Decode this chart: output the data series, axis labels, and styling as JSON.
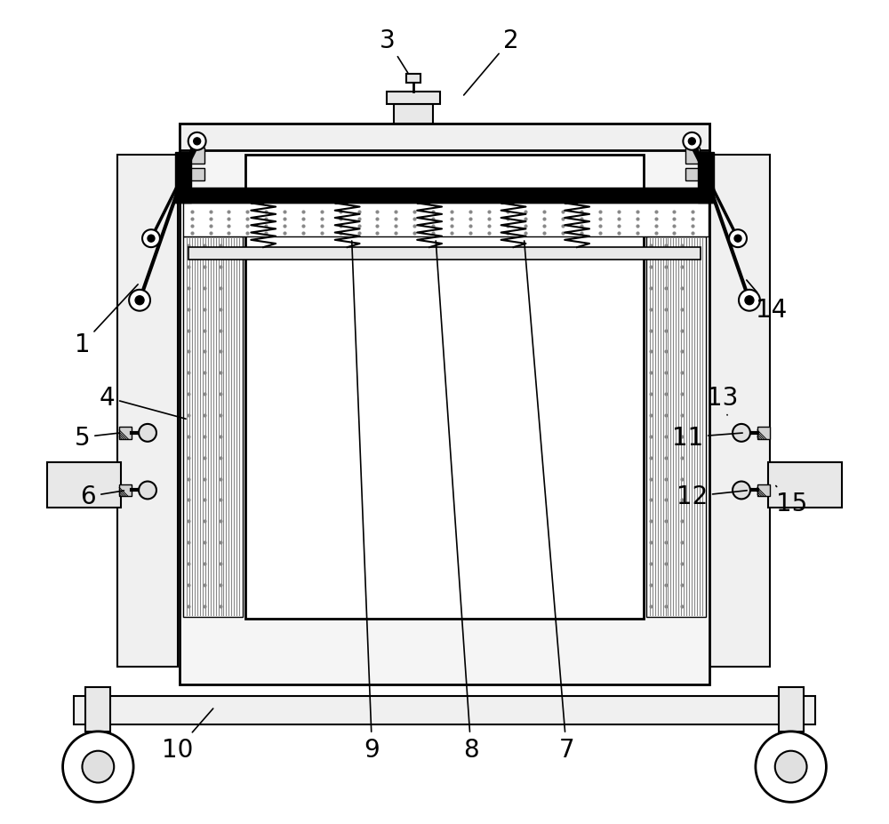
{
  "bg_color": "#ffffff",
  "line_color": "#000000",
  "label_color": "#000000",
  "fig_width": 10.0,
  "fig_height": 9.28
}
